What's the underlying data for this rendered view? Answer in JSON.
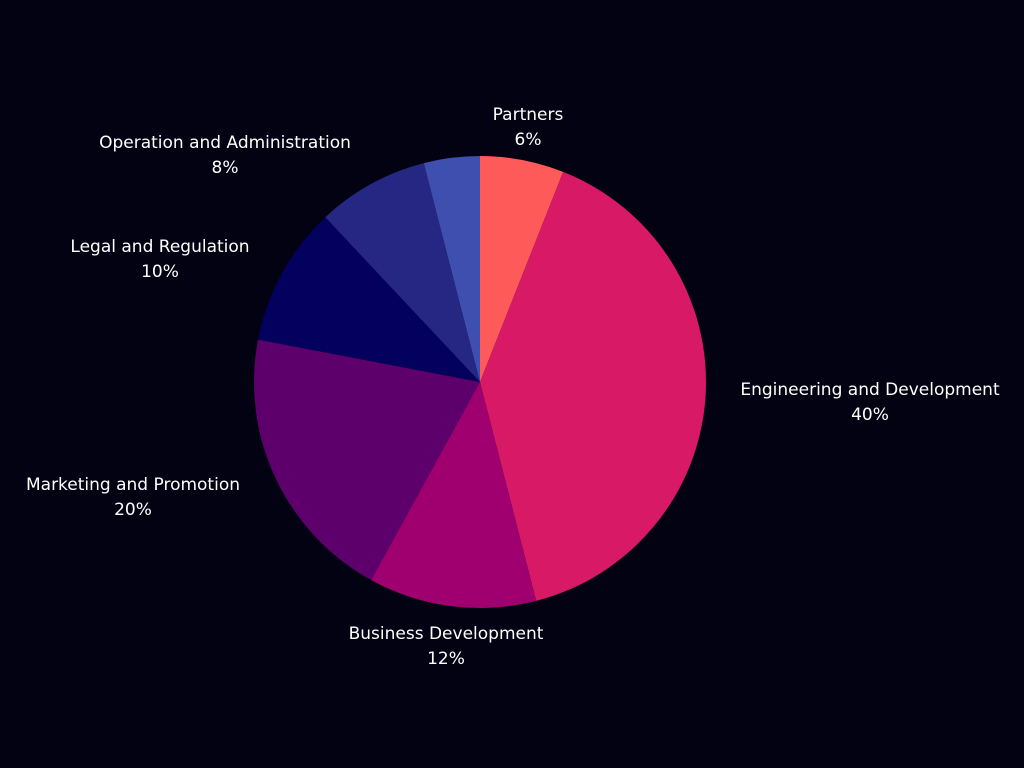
{
  "chart_data": {
    "type": "pie",
    "title": "",
    "background_color": "#020212",
    "label_color": "#ffffff",
    "slices": [
      {
        "label": "Partners",
        "value_text": "6%",
        "value": 6,
        "color": "#ff5a5a"
      },
      {
        "label": "Engineering and Development",
        "value_text": "40%",
        "value": 40,
        "color": "#d81965"
      },
      {
        "label": "Business Development",
        "value_text": "12%",
        "value": 12,
        "color": "#a0006f"
      },
      {
        "label": "Marketing and Promotion",
        "value_text": "20%",
        "value": 20,
        "color": "#5e006b"
      },
      {
        "label": "Legal and Regulation",
        "value_text": "10%",
        "value": 10,
        "color": "#03005e"
      },
      {
        "label": "Operation and Administration",
        "value_text": "8%",
        "value": 8,
        "color": "#252782"
      },
      {
        "label": "",
        "value": 4,
        "color": "#3f4faf"
      }
    ]
  }
}
